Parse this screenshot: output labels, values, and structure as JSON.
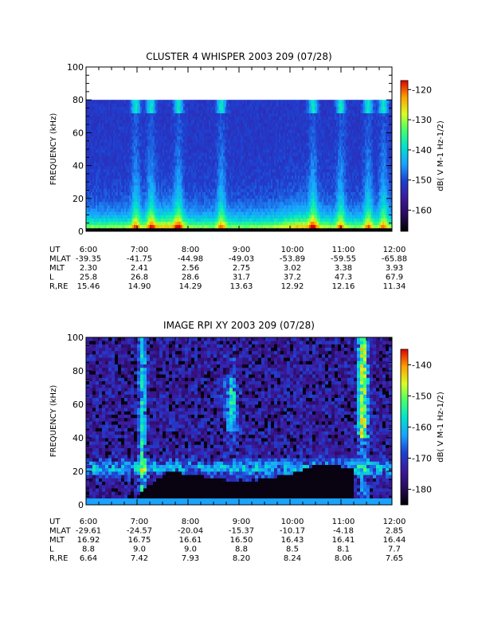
{
  "colors": {
    "background": "#ffffff",
    "axis": "#000000",
    "colormap": [
      "#000000",
      "#2a0a5c",
      "#3b1a9e",
      "#1f3fcf",
      "#1aa0ff",
      "#00e0d0",
      "#40ff70",
      "#d8ff20",
      "#ffa000",
      "#e00000"
    ]
  },
  "chart_data": [
    {
      "type": "heatmap",
      "title": "CLUSTER 4 WHISPER 2003 209 (07/28)",
      "ylabel": "FREQUENCY (kHz)",
      "ylim": [
        0,
        100
      ],
      "yticks": [
        "0",
        "20",
        "40",
        "60",
        "80",
        "100"
      ],
      "xlim_labels": [
        "6:00",
        "12:00"
      ],
      "data_ceiling_khz": 80,
      "colorbar": {
        "label": "dB( V M-1 Hz-1/2)",
        "range": [
          -167,
          -117
        ],
        "ticks": [
          "-160",
          "-150",
          "-140",
          "-130",
          "-120"
        ]
      },
      "ephemeris": {
        "row_labels": [
          "UT",
          "MLAT",
          "MLT",
          "L",
          "R,RE"
        ],
        "UT": [
          "6:00",
          "7:00",
          "8:00",
          "9:00",
          "10:00",
          "11:00",
          "12:00"
        ],
        "MLAT": [
          "-39.35",
          "-41.75",
          "-44.98",
          "-49.03",
          "-53.89",
          "-59.55",
          "-65.88"
        ],
        "MLT": [
          "2.30",
          "2.41",
          "2.56",
          "2.75",
          "3.02",
          "3.38",
          "3.93"
        ],
        "L": [
          "25.8",
          "26.8",
          "28.6",
          "31.7",
          "37.2",
          "47.3",
          "67.9"
        ],
        "R,RE": [
          "15.46",
          "14.90",
          "14.29",
          "13.63",
          "12.92",
          "12.16",
          "11.34"
        ]
      }
    },
    {
      "type": "heatmap",
      "title": "IMAGE RPI XY 2003 209 (07/28)",
      "ylabel": "FREQUENCY (kHz)",
      "ylim": [
        0,
        100
      ],
      "yticks": [
        "0",
        "20",
        "40",
        "60",
        "80",
        "100"
      ],
      "xlim_labels": [
        "6:00",
        "12:00"
      ],
      "colorbar": {
        "label": "dB( V M-1 Hz-1/2)",
        "range": [
          -185,
          -135
        ],
        "ticks": [
          "-180",
          "-170",
          "-160",
          "-150",
          "-140"
        ]
      },
      "ephemeris": {
        "row_labels": [
          "UT",
          "MLAT",
          "MLT",
          "L",
          "R,RE"
        ],
        "UT": [
          "6:00",
          "7:00",
          "8:00",
          "9:00",
          "10:00",
          "11:00",
          "12:00"
        ],
        "MLAT": [
          "-29.61",
          "-24.57",
          "-20.04",
          "-15.37",
          "-10.17",
          "-4.18",
          "2.85"
        ],
        "MLT": [
          "16.92",
          "16.75",
          "16.61",
          "16.50",
          "16.43",
          "16.41",
          "16.44"
        ],
        "L": [
          "8.8",
          "9.0",
          "9.0",
          "8.8",
          "8.5",
          "8.1",
          "7.7"
        ],
        "R,RE": [
          "6.64",
          "7.42",
          "7.93",
          "8.20",
          "8.24",
          "8.06",
          "7.65"
        ]
      }
    }
  ]
}
